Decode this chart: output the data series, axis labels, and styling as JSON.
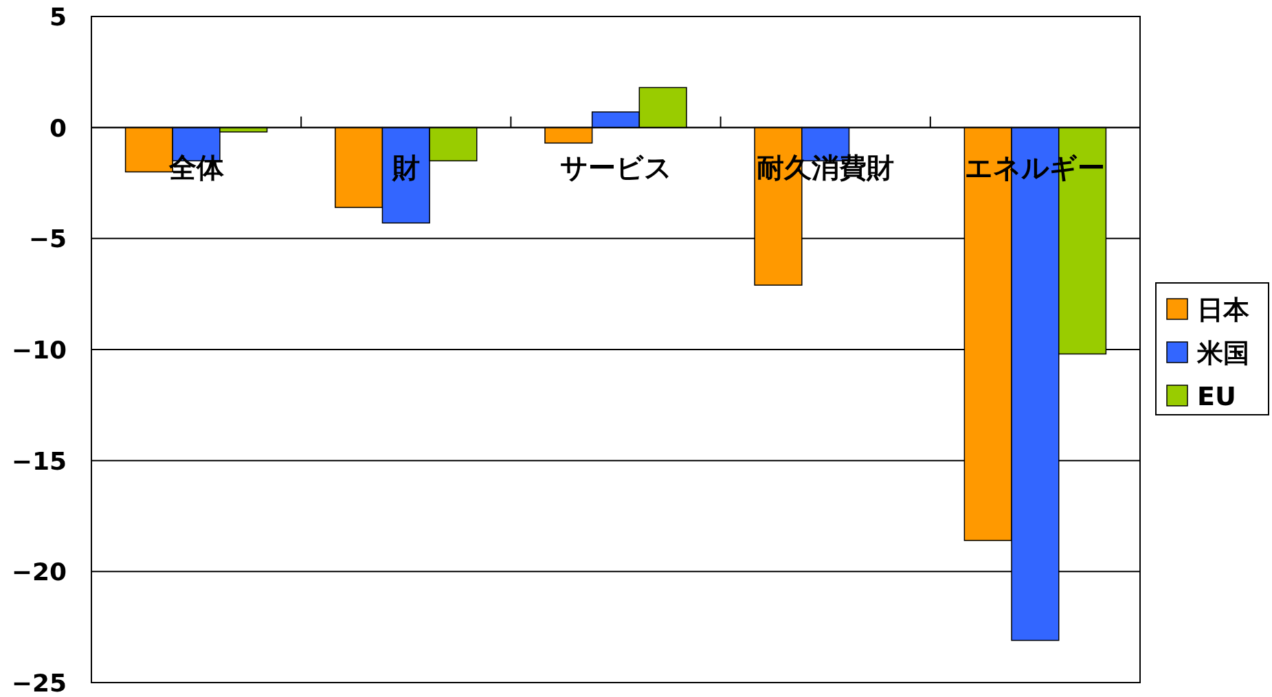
{
  "chart_data": {
    "type": "bar",
    "categories": [
      "全体",
      "財",
      "サービス",
      "耐久消費財",
      "エネルギー"
    ],
    "series": [
      {
        "name": "日本",
        "color": "#ff9900",
        "values": [
          -2.0,
          -3.6,
          -0.7,
          -7.1,
          -18.6
        ]
      },
      {
        "name": "米国",
        "color": "#3366ff",
        "values": [
          -1.5,
          -4.3,
          0.7,
          -1.5,
          -23.1
        ]
      },
      {
        "name": "EU",
        "color": "#99cc00",
        "values": [
          -0.2,
          -1.5,
          1.8,
          null,
          -10.2
        ]
      }
    ],
    "ylim": [
      -25,
      5
    ],
    "yticks": [
      -25,
      -20,
      -15,
      -10,
      -5,
      0,
      5
    ],
    "grid": "y",
    "legend": "right"
  }
}
